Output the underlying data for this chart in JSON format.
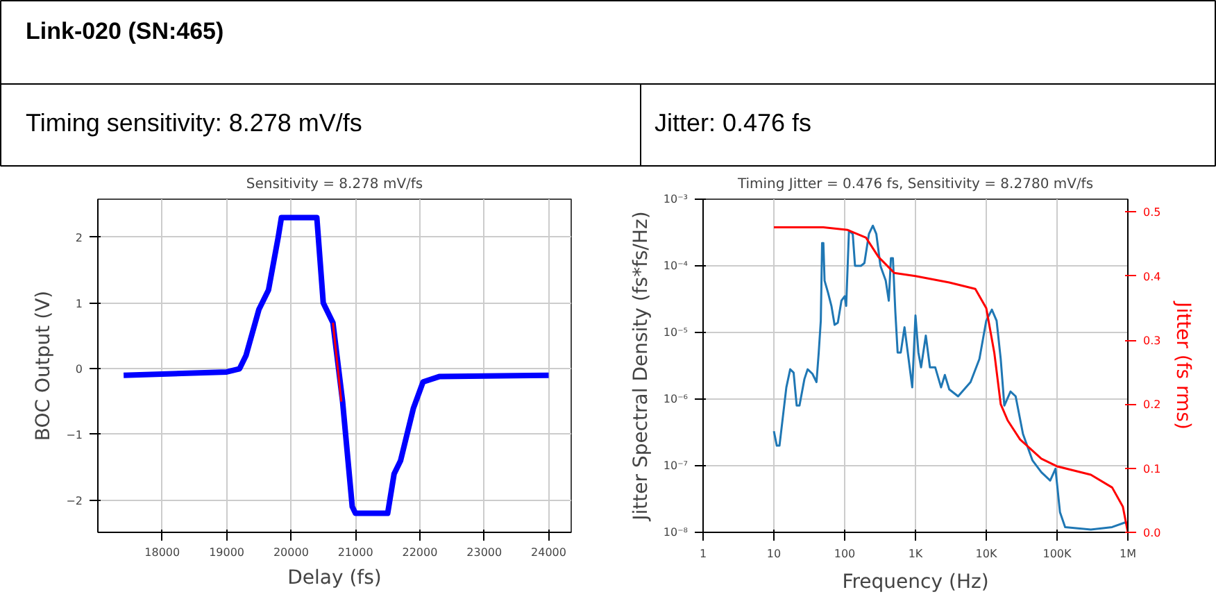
{
  "chart_data": [
    {
      "type": "other",
      "title": "Link-020 (SN:465)",
      "annotations": [
        "Timing sensitivity: 8.278 mV/fs",
        "Jitter: 0.476 fs"
      ]
    },
    {
      "type": "line",
      "title": "Sensitivity = 8.278 mV/fs",
      "xlabel": "Delay (fs)",
      "ylabel": "BOC Output (V)",
      "xlim": [
        17000,
        24350
      ],
      "xticks": [
        18000,
        19000,
        20000,
        21000,
        22000,
        23000,
        24000
      ],
      "ylim": [
        -2.49,
        2.58
      ],
      "yticks": [
        {
          "value": -2,
          "label": "−2"
        },
        {
          "value": -1,
          "label": "−1"
        },
        0,
        1,
        2
      ],
      "grid": true,
      "series": [
        {
          "color": "#0000ff",
          "x": [
            17400,
            19000,
            19200,
            19300,
            19500,
            19650,
            19800,
            19850,
            20400,
            20500,
            20650,
            20800,
            20950,
            21000,
            21500,
            21600,
            21700,
            21900,
            22050,
            22300,
            24000
          ],
          "values": [
            -0.1,
            -0.05,
            0,
            0.2,
            0.9,
            1.2,
            2.0,
            2.3,
            2.3,
            1.0,
            0.7,
            -0.5,
            -2.1,
            -2.2,
            -2.2,
            -1.6,
            -1.4,
            -0.6,
            -0.2,
            -0.12,
            -0.1
          ]
        },
        {
          "color": "#ff0000",
          "x": [
            20650,
            20780
          ],
          "values": [
            0.7,
            -0.5
          ]
        }
      ]
    },
    {
      "type": "line",
      "title": "Timing Jitter = 0.476 fs, Sensitivity = 8.2780 mV/fs",
      "xlabel": "Frequency (Hz)",
      "ylabel": "Jitter Spectral Density (fs*fs/Hz)",
      "y2label": "Jitter (fs rms)",
      "log": "xy",
      "grid": true,
      "xlim": [
        1,
        1000000
      ],
      "xticks": [
        1,
        10,
        100,
        {
          "value": 1000,
          "label": "1K"
        },
        {
          "value": 10000,
          "label": "10K"
        },
        {
          "value": 100000,
          "label": "100K"
        },
        {
          "value": 1000000,
          "label": "1M"
        }
      ],
      "ylim": [
        1e-08,
        0.001
      ],
      "yticks": [
        {
          "value": 1e-08,
          "label": "10⁻⁸"
        },
        {
          "value": 1e-07,
          "label": "10⁻⁷"
        },
        {
          "value": 1e-06,
          "label": "10⁻⁶"
        },
        {
          "value": 1e-05,
          "label": "10⁻⁵"
        },
        {
          "value": 0.0001,
          "label": "10⁻⁴"
        },
        {
          "value": 0.001,
          "label": "10⁻³"
        }
      ],
      "y2lim": [
        0,
        0.52
      ],
      "y2ticks": [
        {
          "value": 0,
          "label": "0.0"
        },
        0.1,
        0.2,
        0.3,
        0.4,
        0.5
      ],
      "series": [
        {
          "color": "#1f77b4",
          "x": [
            10,
            11,
            12,
            15,
            17,
            19,
            21,
            23,
            27,
            30,
            35,
            40,
            43,
            46,
            48,
            50,
            52,
            58,
            65,
            72,
            80,
            90,
            100,
            105,
            115,
            130,
            140,
            170,
            190,
            220,
            250,
            280,
            320,
            380,
            420,
            450,
            480,
            520,
            560,
            620,
            700,
            800,
            900,
            1000,
            1100,
            1200,
            1400,
            1600,
            1900,
            2300,
            2600,
            3000,
            4000,
            6000,
            8000,
            10000,
            12000,
            14000,
            16000,
            18000,
            22000,
            26000,
            33000,
            45000,
            60000,
            80000,
            95000,
            110000,
            130000,
            300000,
            600000,
            900000,
            1000000
          ],
          "values": [
            3.3e-07,
            2e-07,
            2e-07,
            1.5e-06,
            2.8e-06,
            2.5e-06,
            8e-07,
            8e-07,
            2e-06,
            2.8e-06,
            2.4e-06,
            1.8e-06,
            5e-06,
            1.5e-05,
            0.00022,
            0.00022,
            6e-05,
            4e-05,
            2.5e-05,
            1.3e-05,
            1.4e-05,
            3e-05,
            3.5e-05,
            2.5e-05,
            0.00034,
            0.0003,
            0.0001,
            0.0001,
            0.00011,
            0.0003,
            0.0004,
            0.0003,
            0.0001,
            6e-05,
            3e-05,
            0.00013,
            0.00013,
            2e-05,
            5e-06,
            5e-06,
            1.2e-05,
            4e-06,
            1.5e-06,
            1.8e-05,
            5e-06,
            3e-06,
            9e-06,
            3e-06,
            3e-06,
            1.5e-06,
            2.3e-06,
            1.4e-06,
            1.1e-06,
            1.8e-06,
            4e-06,
            1.5e-05,
            2.2e-05,
            1.5e-05,
            4e-06,
            8e-07,
            1.3e-06,
            1.1e-06,
            3e-07,
            1.2e-07,
            8e-08,
            6e-08,
            9e-08,
            2e-08,
            1.2e-08,
            1.1e-08,
            1.2e-08,
            1.4e-08,
            1.4e-08
          ]
        },
        {
          "color": "#ff0000",
          "axis": "y2",
          "x": [
            10,
            50,
            110,
            200,
            300,
            500,
            1000,
            3000,
            7000,
            10000,
            13000,
            16000,
            20000,
            30000,
            60000,
            100000,
            300000,
            600000,
            850000,
            1000000
          ],
          "values": [
            0.476,
            0.476,
            0.472,
            0.46,
            0.43,
            0.405,
            0.4,
            0.39,
            0.38,
            0.35,
            0.28,
            0.2,
            0.175,
            0.145,
            0.115,
            0.103,
            0.09,
            0.07,
            0.04,
            0.0
          ]
        }
      ]
    }
  ]
}
